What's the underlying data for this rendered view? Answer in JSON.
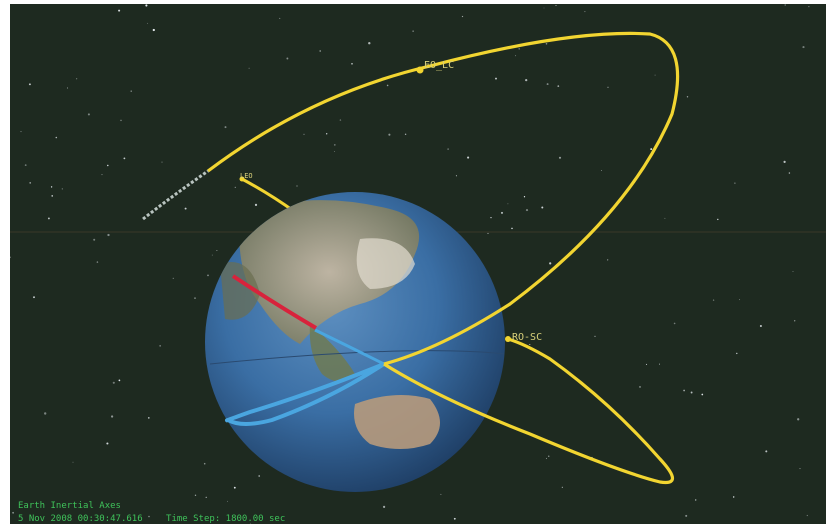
{
  "scene": {
    "satellite_labels": {
      "upper": "EO_LC",
      "lower": "RO-SC",
      "small": "LEO"
    },
    "status_bar": {
      "frame": "Earth Inertial Axes",
      "date_time": "5 Nov 2008 00:30:47.616",
      "time_step_label": "Time Step:",
      "time_step_value": "1800.00 sec"
    },
    "colors": {
      "background": "#1e2a20",
      "orbit_yellow": "#f2d531",
      "orbit_blue": "#4aa6e0",
      "track_red": "#d8233c",
      "status_text": "#3fc25a"
    }
  }
}
